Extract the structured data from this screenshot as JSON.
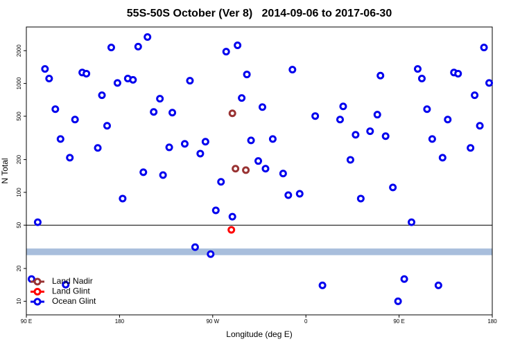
{
  "chart_data": {
    "type": "scatter",
    "title": "55S-50S October (Ver 8)   2014-09-06 to 2017-06-30",
    "xlabel": "Longitude (deg E)",
    "ylabel": "N Total",
    "xlim": [
      90,
      540
    ],
    "xticks": [
      {
        "value": 90,
        "label": "90 E"
      },
      {
        "value": 180,
        "label": "180"
      },
      {
        "value": 270,
        "label": "90 W"
      },
      {
        "value": 360,
        "label": "0"
      },
      {
        "value": 450,
        "label": "90 E"
      },
      {
        "value": 540,
        "label": "180"
      }
    ],
    "ylim": [
      7.5,
      3300
    ],
    "yticks": [
      10,
      20,
      50,
      100,
      200,
      500,
      1000,
      2000
    ],
    "log_y": true,
    "hline": 50,
    "band": [
      26.5,
      30.5
    ],
    "band_color": "#a8bedc",
    "legend": "lower left",
    "series": [
      {
        "name": "Land Nadir",
        "color": "#993333",
        "x": [
          289,
          292,
          302
        ],
        "values": [
          532,
          165,
          160
        ]
      },
      {
        "name": "Land Glint",
        "color": "#ff0000",
        "x": [
          288
        ],
        "values": [
          45.3
        ]
      },
      {
        "name": "Ocean Glint",
        "color": "#0000ee",
        "x": [
          95,
          101,
          108,
          112,
          118,
          123,
          128,
          132,
          137,
          144,
          148,
          159,
          163,
          168,
          172,
          178,
          183,
          188,
          193,
          198,
          203,
          207,
          213,
          219,
          222,
          228,
          231,
          243,
          248,
          253,
          258,
          263,
          268,
          273,
          278,
          283,
          289,
          294,
          298,
          303,
          307,
          314,
          318,
          321,
          328,
          338,
          343,
          347,
          354,
          369,
          376,
          393,
          396,
          403,
          408,
          413,
          422,
          429,
          432,
          437,
          444,
          449,
          455,
          462,
          468,
          472,
          477,
          482,
          488,
          492,
          497,
          503,
          507,
          519,
          523,
          528,
          532,
          537
        ],
        "values": [
          16,
          53.2,
          1360,
          1110,
          581,
          309,
          14.2,
          208,
          466,
          1260,
          1230,
          256,
          780,
          409,
          2140,
          1010,
          87.7,
          1110,
          1080,
          2180,
          153,
          2670,
          548,
          724,
          144,
          259,
          540,
          279,
          1060,
          31.4,
          227,
          292,
          27.1,
          68.3,
          125,
          1960,
          59.8,
          2240,
          735,
          1210,
          300,
          194,
          607,
          165,
          309,
          149,
          94.3,
          1340,
          97.1,
          502,
          14,
          466,
          616,
          199,
          338,
          87.7,
          364,
          517,
          1180,
          328,
          111,
          10,
          16,
          53.2,
          1360,
          1110,
          581,
          309,
          14,
          208,
          466,
          1260,
          1230,
          256,
          780,
          409,
          2140,
          1010
        ]
      }
    ]
  }
}
